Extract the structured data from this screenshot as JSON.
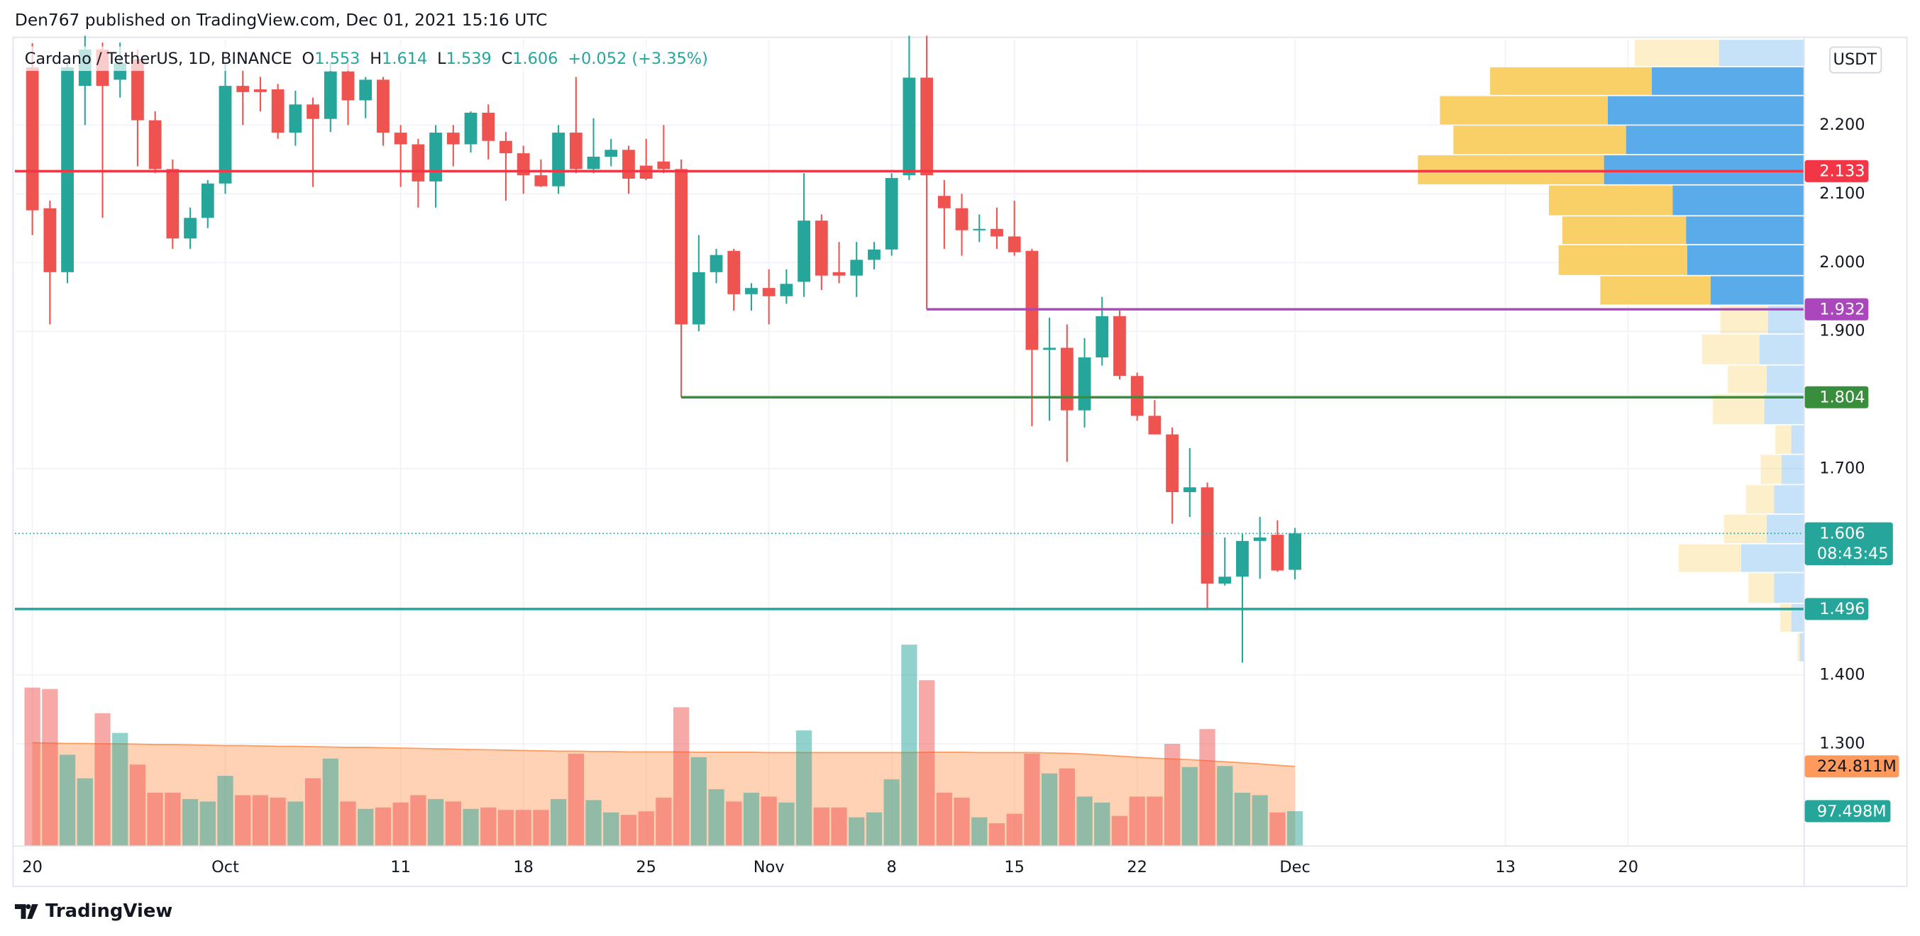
{
  "header": {
    "published": "Den767 published on TradingView.com, Dec 01, 2021 15:16 UTC"
  },
  "footer": {
    "brand": "TradingView"
  },
  "chart_data": {
    "type": "candlestick",
    "symbol": "Cardano / TetherUS, 1D, BINANCE",
    "ohlc_prefixes": [
      "O",
      "H",
      "L",
      "C"
    ],
    "change": "+0.052 (+3.35%)",
    "currency": "USDT",
    "countdown": "08:43:45",
    "up_color": "#26a69a",
    "down_color": "#ef5350",
    "x": [
      "2021-09-20",
      "2021-09-21",
      "2021-09-22",
      "2021-09-23",
      "2021-09-24",
      "2021-09-25",
      "2021-09-26",
      "2021-09-27",
      "2021-09-28",
      "2021-09-29",
      "2021-09-30",
      "2021-10-01",
      "2021-10-02",
      "2021-10-03",
      "2021-10-04",
      "2021-10-05",
      "2021-10-06",
      "2021-10-07",
      "2021-10-08",
      "2021-10-09",
      "2021-10-10",
      "2021-10-11",
      "2021-10-12",
      "2021-10-13",
      "2021-10-14",
      "2021-10-15",
      "2021-10-16",
      "2021-10-17",
      "2021-10-18",
      "2021-10-19",
      "2021-10-20",
      "2021-10-21",
      "2021-10-22",
      "2021-10-23",
      "2021-10-24",
      "2021-10-25",
      "2021-10-26",
      "2021-10-27",
      "2021-10-28",
      "2021-10-29",
      "2021-10-30",
      "2021-10-31",
      "2021-11-01",
      "2021-11-02",
      "2021-11-03",
      "2021-11-04",
      "2021-11-05",
      "2021-11-06",
      "2021-11-07",
      "2021-11-08",
      "2021-11-09",
      "2021-11-10",
      "2021-11-11",
      "2021-11-12",
      "2021-11-13",
      "2021-11-14",
      "2021-11-15",
      "2021-11-16",
      "2021-11-17",
      "2021-11-18",
      "2021-11-19",
      "2021-11-20",
      "2021-11-21",
      "2021-11-22",
      "2021-11-23",
      "2021-11-24",
      "2021-11-25",
      "2021-11-26",
      "2021-11-27",
      "2021-11-28",
      "2021-11-29",
      "2021-11-30",
      "2021-12-01"
    ],
    "open": [
      2.284,
      2.079,
      1.986,
      2.257,
      2.31,
      2.266,
      2.296,
      2.207,
      2.136,
      2.035,
      2.065,
      2.115,
      2.257,
      2.252,
      2.252,
      2.189,
      2.23,
      2.209,
      2.278,
      2.236,
      2.266,
      2.189,
      2.172,
      2.118,
      2.189,
      2.172,
      2.218,
      2.177,
      2.159,
      2.127,
      2.111,
      2.189,
      2.136,
      2.154,
      2.164,
      2.141,
      2.147,
      2.136,
      1.91,
      1.986,
      2.017,
      1.954,
      1.963,
      1.951,
      1.972,
      2.061,
      1.986,
      1.981,
      2.004,
      2.019,
      2.127,
      2.269,
      2.097,
      2.079,
      2.047,
      2.049,
      2.038,
      2.017,
      1.873,
      1.876,
      1.785,
      1.862,
      1.922,
      1.835,
      1.777,
      1.75,
      1.666,
      1.673,
      1.533,
      1.543,
      1.595,
      1.604,
      1.553
    ],
    "high": [
      2.319,
      2.09,
      2.29,
      2.33,
      2.32,
      2.32,
      2.31,
      2.22,
      2.15,
      2.08,
      2.12,
      2.29,
      2.28,
      2.27,
      2.26,
      2.25,
      2.24,
      2.29,
      2.29,
      2.27,
      2.27,
      2.2,
      2.18,
      2.2,
      2.2,
      2.22,
      2.23,
      2.19,
      2.17,
      2.15,
      2.2,
      2.27,
      2.21,
      2.18,
      2.17,
      2.18,
      2.2,
      2.15,
      2.04,
      2.02,
      2.02,
      1.97,
      1.99,
      1.99,
      2.13,
      2.07,
      2.03,
      2.03,
      2.03,
      2.13,
      2.33,
      2.33,
      2.12,
      2.1,
      2.07,
      2.08,
      2.09,
      2.02,
      1.92,
      1.91,
      1.89,
      1.95,
      1.93,
      1.84,
      1.8,
      1.76,
      1.73,
      1.68,
      1.6,
      1.605,
      1.63,
      1.625,
      1.614
    ],
    "low": [
      2.04,
      1.91,
      1.97,
      2.2,
      2.065,
      2.24,
      2.14,
      2.13,
      2.02,
      2.02,
      2.05,
      2.1,
      2.2,
      2.22,
      2.18,
      2.17,
      2.11,
      2.19,
      2.2,
      2.21,
      2.17,
      2.11,
      2.08,
      2.08,
      2.14,
      2.16,
      2.15,
      2.09,
      2.1,
      2.11,
      2.1,
      2.13,
      2.13,
      2.14,
      2.1,
      2.12,
      2.13,
      1.804,
      1.9,
      1.97,
      1.93,
      1.93,
      1.91,
      1.94,
      1.95,
      1.96,
      1.97,
      1.95,
      1.99,
      2.01,
      2.12,
      1.932,
      2.02,
      2.01,
      2.03,
      2.02,
      2.01,
      1.762,
      1.77,
      1.71,
      1.76,
      1.85,
      1.83,
      1.77,
      1.75,
      1.62,
      1.63,
      1.496,
      1.53,
      1.418,
      1.54,
      1.55,
      1.539
    ],
    "close": [
      2.076,
      1.986,
      2.284,
      2.31,
      2.257,
      2.29,
      2.207,
      2.136,
      2.035,
      2.065,
      2.115,
      2.257,
      2.248,
      2.248,
      2.189,
      2.23,
      2.209,
      2.278,
      2.236,
      2.266,
      2.189,
      2.172,
      2.118,
      2.189,
      2.172,
      2.218,
      2.177,
      2.159,
      2.127,
      2.111,
      2.189,
      2.136,
      2.154,
      2.164,
      2.122,
      2.122,
      2.136,
      1.91,
      1.986,
      2.011,
      1.954,
      1.963,
      1.951,
      1.969,
      2.061,
      1.981,
      1.981,
      2.004,
      2.019,
      2.123,
      2.269,
      2.127,
      2.079,
      2.047,
      2.049,
      2.038,
      2.015,
      1.873,
      1.876,
      1.785,
      1.862,
      1.922,
      1.835,
      1.777,
      1.75,
      1.666,
      1.673,
      1.533,
      1.543,
      1.595,
      1.6,
      1.552,
      1.606
    ],
    "xlim": [
      "2021-09-19",
      "2021-12-30"
    ],
    "xticks": [
      {
        "value": "2021-09-20",
        "label": "20"
      },
      {
        "value": "2021-10-01",
        "label": "Oct"
      },
      {
        "value": "2021-10-11",
        "label": "11"
      },
      {
        "value": "2021-10-18",
        "label": "18"
      },
      {
        "value": "2021-10-25",
        "label": "25"
      },
      {
        "value": "2021-11-01",
        "label": "Nov"
      },
      {
        "value": "2021-11-08",
        "label": "8"
      },
      {
        "value": "2021-11-15",
        "label": "15"
      },
      {
        "value": "2021-11-22",
        "label": "22"
      },
      {
        "value": "2021-12-01",
        "label": "Dec"
      },
      {
        "value": "2021-12-13",
        "label": "13"
      },
      {
        "value": "2021-12-20",
        "label": "20"
      }
    ],
    "ylim": [
      1.152,
      2.325
    ],
    "yticks": [
      {
        "value": 1.3,
        "label": "1.300"
      },
      {
        "value": 1.4,
        "label": "1.400"
      },
      {
        "value": 1.7,
        "label": "1.700"
      },
      {
        "value": 1.9,
        "label": "1.900"
      },
      {
        "value": 2.0,
        "label": "2.000"
      },
      {
        "value": 2.1,
        "label": "2.100"
      },
      {
        "value": 2.2,
        "label": "2.200"
      }
    ],
    "grid": true,
    "levels": [
      {
        "value": 2.133,
        "color": "#f23645",
        "from": "2021-09-19"
      },
      {
        "value": 1.932,
        "color": "#ab47bc",
        "from": "2021-11-10"
      },
      {
        "value": 1.804,
        "color": "#388e3c",
        "from": "2021-10-27"
      },
      {
        "value": 1.496,
        "color": "#26a69a",
        "from": "2021-09-19"
      }
    ],
    "volume": {
      "ylim": [
        0,
        2293
      ],
      "values": [
        449,
        445,
        258,
        191,
        376,
        320,
        230,
        150,
        150,
        132,
        125,
        198,
        143,
        143,
        136,
        125,
        191,
        247,
        125,
        104,
        108,
        122,
        143,
        132,
        125,
        104,
        108,
        101,
        101,
        101,
        132,
        261,
        129,
        94,
        87,
        97,
        136,
        393,
        251,
        160,
        125,
        150,
        139,
        122,
        327,
        108,
        108,
        80,
        94,
        188,
        571,
        470,
        150,
        136,
        80,
        63,
        90,
        261,
        205,
        219,
        139,
        122,
        84,
        139,
        139,
        289,
        223,
        331,
        226,
        150,
        143,
        94,
        97.498
      ],
      "value_labels": [
        null,
        null,
        null,
        null,
        null,
        null,
        null,
        null,
        null,
        null,
        null,
        null,
        null,
        null,
        null,
        null,
        null,
        null,
        null,
        null,
        null,
        null,
        null,
        null,
        null,
        null,
        null,
        null,
        null,
        null,
        null,
        null,
        null,
        null,
        null,
        null,
        null,
        null,
        null,
        null,
        null,
        null,
        null,
        null,
        null,
        null,
        null,
        null,
        null,
        null,
        null,
        null,
        null,
        null,
        null,
        null,
        null,
        null,
        null,
        null,
        null,
        null,
        null,
        null,
        null,
        null,
        null,
        null,
        null,
        null,
        null,
        null,
        "97.498M"
      ],
      "ma": [
        292,
        291,
        290,
        290,
        289,
        289,
        288,
        287,
        287,
        286,
        285,
        284,
        284,
        283,
        282,
        282,
        281,
        280,
        279,
        279,
        278,
        277,
        276,
        275,
        274,
        273,
        272,
        271,
        270,
        269,
        268,
        268,
        267,
        267,
        266,
        266,
        266,
        266,
        265,
        265,
        265,
        265,
        264,
        264,
        264,
        264,
        264,
        264,
        264,
        264,
        264,
        265,
        265,
        265,
        264,
        264,
        264,
        264,
        263,
        262,
        260,
        257,
        254,
        251,
        248,
        246,
        244,
        241,
        238,
        235,
        232,
        228,
        224.811
      ],
      "ma_label": "224.811M",
      "ma_color": "#ff9a5c"
    },
    "volume_profile": {
      "bins": [
        2.325,
        2.285,
        2.243,
        2.2,
        2.157,
        2.113,
        2.068,
        2.026,
        1.981,
        1.938,
        1.896,
        1.851,
        1.809,
        1.764,
        1.721,
        1.677,
        1.634,
        1.591,
        1.549,
        1.504,
        1.462,
        1.419
      ],
      "up": [
        69,
        124,
        160,
        145,
        163,
        107,
        96,
        95,
        76,
        29,
        36,
        30,
        32,
        10,
        18,
        24,
        30,
        51,
        24,
        10,
        3
      ],
      "down": [
        69,
        132,
        137,
        141,
        152,
        101,
        101,
        105,
        90,
        39,
        47,
        32,
        42,
        13,
        17,
        23,
        35,
        51,
        21,
        9,
        2
      ],
      "up_color": "#5aabea",
      "down_color": "#f9d068",
      "value_area": [
        1.938,
        2.285
      ]
    }
  }
}
